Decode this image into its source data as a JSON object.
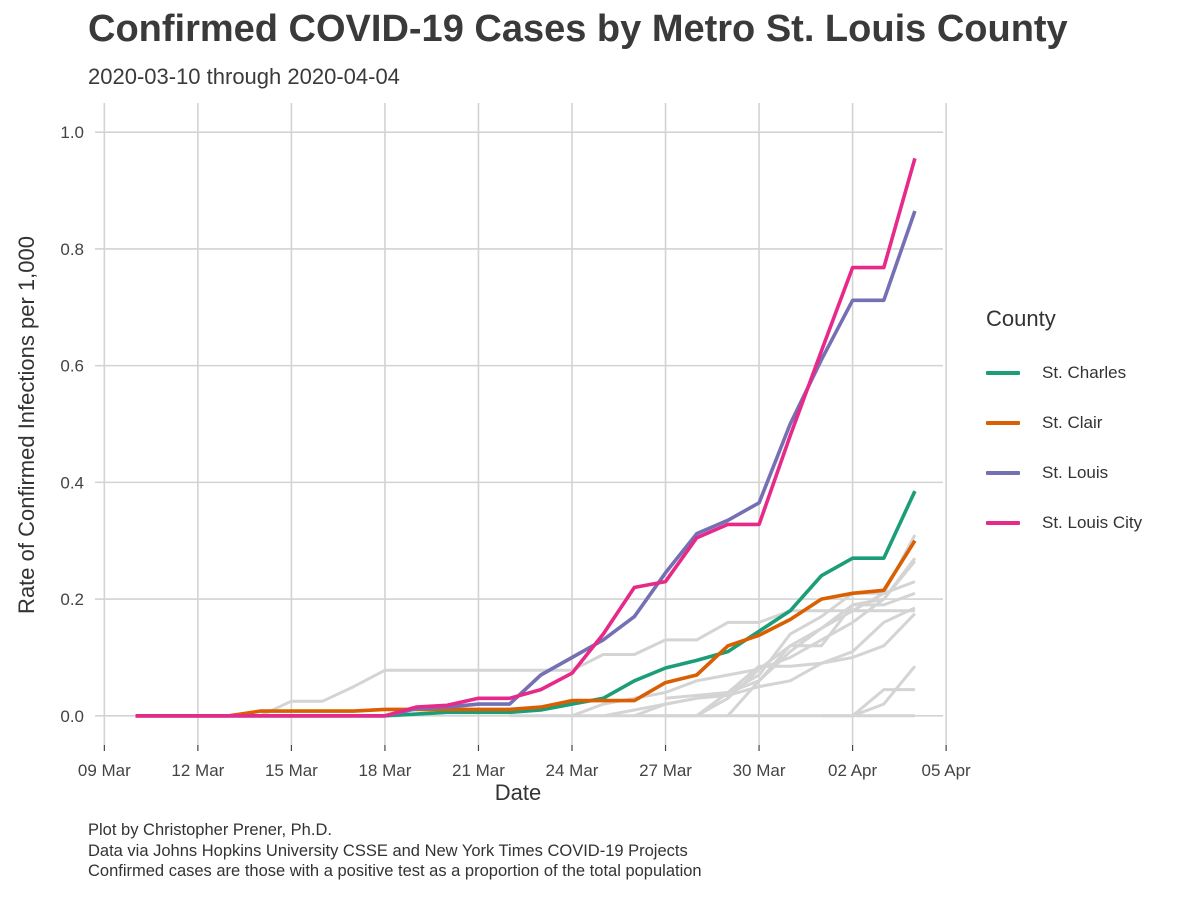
{
  "title": "Confirmed COVID-19 Cases by Metro St. Louis County",
  "subtitle": "2020-03-10 through 2020-04-04",
  "caption": [
    "Plot by Christopher Prener, Ph.D.",
    "Data via Johns Hopkins University CSSE and New York Times COVID-19 Projects",
    "Confirmed cases are those with a positive test as a proportion of the total population"
  ],
  "legend": {
    "title": "County"
  },
  "chart_data": {
    "type": "line",
    "title": "Confirmed COVID-19 Cases by Metro St. Louis County",
    "subtitle": "2020-03-10 through 2020-04-04",
    "xlabel": "Date",
    "ylabel": "Rate of Confirmed Infections per 1,000",
    "x_ticks": [
      "09 Mar",
      "12 Mar",
      "15 Mar",
      "18 Mar",
      "21 Mar",
      "24 Mar",
      "27 Mar",
      "30 Mar",
      "02 Apr",
      "05 Apr"
    ],
    "y_ticks": [
      "0.0",
      "0.2",
      "0.4",
      "0.6",
      "0.8",
      "1.0"
    ],
    "xlim": [
      -1.3,
      25.9
    ],
    "ylim": [
      -0.05,
      1.05
    ],
    "legend_position": "right",
    "x_day_offset_note": "x values are days since 2020-03-10",
    "highlighted_series": [
      {
        "name": "St. Charles",
        "color": "#1b9e77",
        "x": [
          0,
          1,
          2,
          3,
          4,
          5,
          6,
          7,
          8,
          9,
          10,
          11,
          12,
          13,
          14,
          15,
          16,
          17,
          18,
          19,
          20,
          21,
          22,
          23,
          24,
          25
        ],
        "y": [
          0,
          0,
          0,
          0,
          0,
          0,
          0,
          0,
          0,
          0.003,
          0.006,
          0.006,
          0.006,
          0.01,
          0.02,
          0.03,
          0.06,
          0.082,
          0.095,
          0.11,
          0.145,
          0.18,
          0.24,
          0.27,
          0.27,
          0.385
        ]
      },
      {
        "name": "St. Clair",
        "color": "#d95f02",
        "x": [
          0,
          1,
          2,
          3,
          4,
          5,
          6,
          7,
          8,
          9,
          10,
          11,
          12,
          13,
          14,
          15,
          16,
          17,
          18,
          19,
          20,
          21,
          22,
          23,
          24,
          25
        ],
        "y": [
          0,
          0,
          0,
          0,
          0.008,
          0.008,
          0.008,
          0.008,
          0.011,
          0.011,
          0.011,
          0.011,
          0.011,
          0.015,
          0.026,
          0.026,
          0.026,
          0.057,
          0.07,
          0.12,
          0.138,
          0.165,
          0.2,
          0.21,
          0.215,
          0.3
        ]
      },
      {
        "name": "St. Louis",
        "color": "#7570b3",
        "x": [
          0,
          1,
          2,
          3,
          4,
          5,
          6,
          7,
          8,
          9,
          10,
          11,
          12,
          13,
          14,
          15,
          16,
          17,
          18,
          19,
          20,
          21,
          22,
          23,
          24,
          25
        ],
        "y": [
          0,
          0,
          0,
          0,
          0,
          0,
          0,
          0,
          0,
          0.012,
          0.015,
          0.02,
          0.02,
          0.07,
          0.1,
          0.13,
          0.17,
          0.245,
          0.312,
          0.335,
          0.365,
          0.5,
          0.61,
          0.712,
          0.712,
          0.865
        ]
      },
      {
        "name": "St. Louis City",
        "color": "#e7298a",
        "x": [
          0,
          1,
          2,
          3,
          4,
          5,
          6,
          7,
          8,
          9,
          10,
          11,
          12,
          13,
          14,
          15,
          16,
          17,
          18,
          19,
          20,
          21,
          22,
          23,
          24,
          25
        ],
        "y": [
          0,
          0,
          0,
          0,
          0,
          0,
          0,
          0,
          0,
          0.015,
          0.018,
          0.03,
          0.03,
          0.045,
          0.073,
          0.14,
          0.22,
          0.23,
          0.305,
          0.328,
          0.328,
          0.48,
          0.625,
          0.768,
          0.768,
          0.955
        ]
      }
    ],
    "background_series_color": "#d4d4d4",
    "background_series": [
      {
        "x": [
          0,
          1,
          2,
          3,
          4,
          5,
          6,
          7,
          8,
          9,
          10,
          11,
          12,
          13,
          14,
          15,
          16,
          17,
          18,
          19,
          20,
          21,
          22,
          23,
          24,
          25
        ],
        "y": [
          0,
          0,
          0,
          0,
          0,
          0.025,
          0.025,
          0.05,
          0.078,
          0.078,
          0.078,
          0.078,
          0.078,
          0.078,
          0.078,
          0.105,
          0.105,
          0.13,
          0.13,
          0.16,
          0.16,
          0.18,
          0.18,
          0.18,
          0.18,
          0.18
        ]
      },
      {
        "x": [
          14,
          15,
          16,
          17,
          18,
          19,
          20,
          21,
          22,
          23,
          24,
          25
        ],
        "y": [
          0,
          0.02,
          0.03,
          0.04,
          0.06,
          0.07,
          0.08,
          0.12,
          0.15,
          0.19,
          0.2,
          0.27
        ]
      },
      {
        "x": [
          15,
          16,
          17,
          18,
          19,
          20,
          21,
          22,
          23,
          24,
          25
        ],
        "y": [
          0,
          0.01,
          0.02,
          0.03,
          0.035,
          0.05,
          0.06,
          0.09,
          0.1,
          0.12,
          0.175
        ]
      },
      {
        "x": [
          16,
          17,
          18,
          19,
          20,
          21,
          22,
          23,
          24,
          25
        ],
        "y": [
          0,
          0.02,
          0.03,
          0.04,
          0.06,
          0.11,
          0.15,
          0.18,
          0.21,
          0.23
        ]
      },
      {
        "x": [
          17,
          18,
          19,
          20,
          21,
          22,
          23,
          24,
          25
        ],
        "y": [
          0,
          0,
          0.04,
          0.07,
          0.14,
          0.17,
          0.21,
          0.21,
          0.31
        ]
      },
      {
        "x": [
          18,
          19,
          20,
          21,
          22,
          23,
          24,
          25
        ],
        "y": [
          0,
          0.03,
          0.08,
          0.1,
          0.13,
          0.16,
          0.2,
          0.265
        ]
      },
      {
        "x": [
          19,
          20,
          21,
          22,
          23,
          24,
          25
        ],
        "y": [
          0,
          0.06,
          0.12,
          0.12,
          0.19,
          0.19,
          0.21
        ]
      },
      {
        "x": [
          17,
          18,
          19,
          20,
          21,
          22,
          23,
          24,
          25
        ],
        "y": [
          0.03,
          0.035,
          0.04,
          0.085,
          0.085,
          0.09,
          0.11,
          0.16,
          0.185
        ]
      },
      {
        "x": [
          22,
          23,
          24,
          25
        ],
        "y": [
          0,
          0,
          0.045,
          0.045
        ]
      },
      {
        "x": [
          23,
          24,
          25
        ],
        "y": [
          0,
          0.02,
          0.085
        ]
      },
      {
        "x": [
          12,
          13,
          14,
          15,
          16,
          17,
          18,
          19,
          20,
          21,
          22,
          23,
          24,
          25
        ],
        "y": [
          0,
          0,
          0,
          0,
          0,
          0,
          0,
          0,
          0,
          0,
          0,
          0,
          0,
          0
        ]
      }
    ]
  }
}
